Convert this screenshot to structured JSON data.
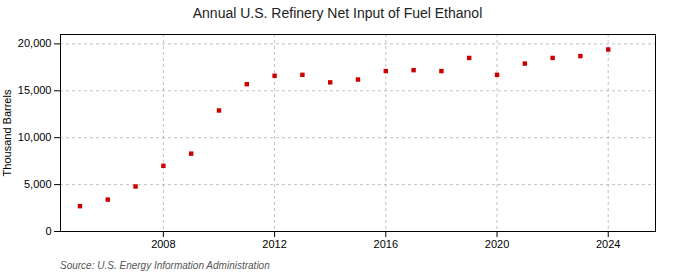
{
  "chart_data": {
    "type": "scatter",
    "title": "Annual U.S. Refinery Net Input of Fuel Ethanol",
    "ylabel": "Thousand Barrels",
    "source": "Source: U.S. Energy Information Administration",
    "x": [
      2005,
      2006,
      2007,
      2008,
      2009,
      2010,
      2011,
      2012,
      2013,
      2014,
      2015,
      2016,
      2017,
      2018,
      2019,
      2020,
      2021,
      2022,
      2023,
      2024
    ],
    "values": [
      2700,
      3400,
      4800,
      7000,
      8300,
      12900,
      15700,
      16600,
      16700,
      15900,
      16200,
      17100,
      17200,
      17100,
      18500,
      16700,
      17900,
      18500,
      18700,
      19400
    ],
    "color": "#cc0000",
    "marker": "square",
    "xlim": [
      2004.3,
      2025.7
    ],
    "xticks": [
      2008,
      2012,
      2016,
      2020,
      2024
    ],
    "ylim": [
      0,
      21000
    ],
    "yticks": [
      0,
      {
        "value": 5000,
        "label": "5,000"
      },
      {
        "value": 10000,
        "label": "10,000"
      },
      {
        "value": 15000,
        "label": "15,000"
      },
      {
        "value": 20000,
        "label": "20,000"
      }
    ],
    "grid": true
  }
}
